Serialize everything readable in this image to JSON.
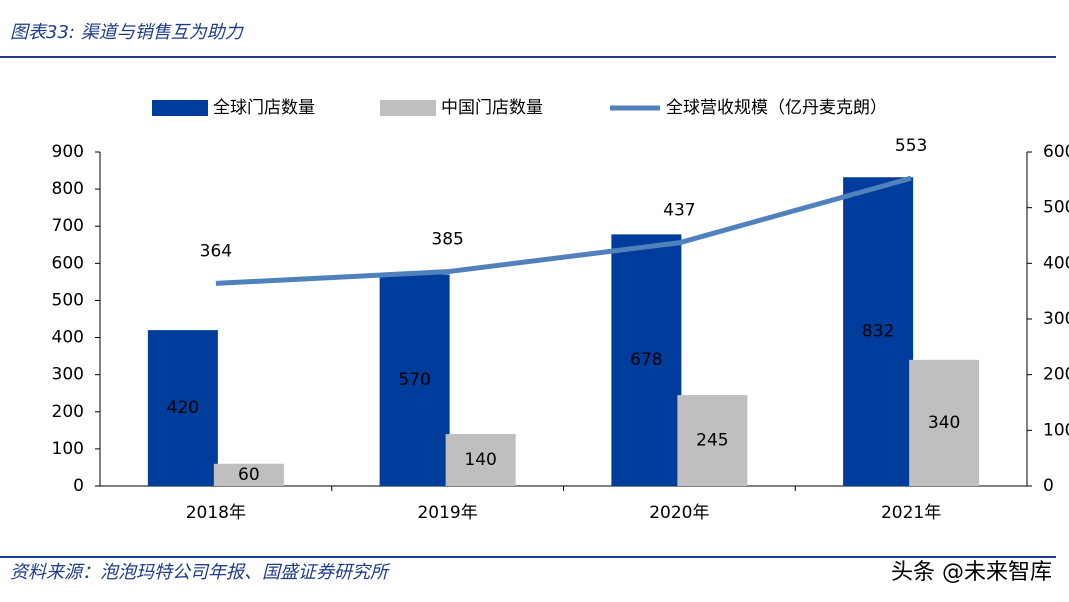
{
  "header": {
    "title": "图表33:  渠道与销售互为助力"
  },
  "chart_data": {
    "type": "bar",
    "categories": [
      "2018年",
      "2019年",
      "2020年",
      "2021年"
    ],
    "series": [
      {
        "name": "全球门店数量",
        "type": "bar",
        "color": "#003c9c",
        "values": [
          420,
          570,
          678,
          832
        ]
      },
      {
        "name": "中国门店数量",
        "type": "bar",
        "color": "#bfbfbf",
        "values": [
          60,
          140,
          245,
          340
        ]
      },
      {
        "name": "全球营收规模（亿丹麦克朗）",
        "type": "line",
        "axis": "y2",
        "color": "#4f81bd",
        "values": [
          364,
          385,
          437,
          553
        ]
      }
    ],
    "ylim": [
      0,
      900
    ],
    "yticks": [
      0,
      100,
      200,
      300,
      400,
      500,
      600,
      700,
      800,
      900
    ],
    "y2lim": [
      0,
      600
    ],
    "y2ticks": [
      0,
      100,
      200,
      300,
      400,
      500,
      600
    ],
    "legend": "top"
  },
  "footer": {
    "source": "资料来源：泡泡玛特公司年报、国盛证券研究所",
    "watermark": "头条 @未来智库"
  }
}
